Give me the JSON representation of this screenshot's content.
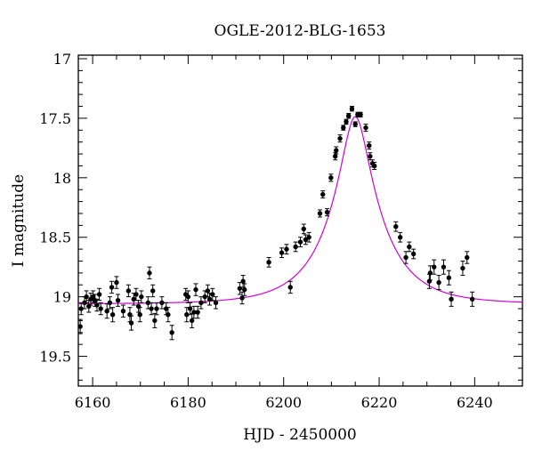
{
  "chart_data": {
    "type": "scatter",
    "title": "OGLE-2012-BLG-1653",
    "xlabel": "HJD - 2450000",
    "ylabel": "I magnitude",
    "xlim": [
      6157,
      6250
    ],
    "ylim": [
      19.75,
      16.97
    ],
    "y_inverted": true,
    "xticks": [
      6160,
      6180,
      6200,
      6220,
      6240
    ],
    "yticks": [
      17,
      17.5,
      18,
      18.5,
      19,
      19.5
    ],
    "xtick_labels": [
      "6160",
      "6180",
      "6200",
      "6220",
      "6240"
    ],
    "ytick_labels": [
      "17",
      "17.5",
      "18",
      "18.5",
      "19",
      "19.5"
    ],
    "grid": false,
    "colors": {
      "points": "#000000",
      "model": "#d400d4"
    },
    "model": {
      "t0": 6215.0,
      "u0": 0.24,
      "tE": 11.0,
      "baseline_mag": 19.06
    },
    "series": [
      {
        "points": [
          [
            6157.4,
            19.25,
            0.06
          ],
          [
            6157.6,
            19.1,
            0.05
          ],
          [
            6158.3,
            19.05,
            0.05
          ],
          [
            6158.7,
            19.0,
            0.05
          ],
          [
            6159.2,
            19.08,
            0.05
          ],
          [
            6159.6,
            19.02,
            0.05
          ],
          [
            6160.1,
            19.0,
            0.05
          ],
          [
            6160.5,
            19.03,
            0.05
          ],
          [
            6160.9,
            19.07,
            0.05
          ],
          [
            6161.4,
            18.98,
            0.05
          ],
          [
            6161.7,
            19.1,
            0.05
          ],
          [
            6163.0,
            19.12,
            0.06
          ],
          [
            6163.6,
            19.05,
            0.05
          ],
          [
            6164.0,
            18.92,
            0.05
          ],
          [
            6164.2,
            19.15,
            0.06
          ],
          [
            6165.0,
            18.88,
            0.05
          ],
          [
            6165.3,
            19.03,
            0.05
          ],
          [
            6166.4,
            19.12,
            0.05
          ],
          [
            6167.5,
            18.95,
            0.05
          ],
          [
            6167.8,
            19.15,
            0.06
          ],
          [
            6168.1,
            19.22,
            0.06
          ],
          [
            6168.6,
            19.02,
            0.05
          ],
          [
            6169.1,
            18.98,
            0.05
          ],
          [
            6169.6,
            19.08,
            0.05
          ],
          [
            6169.9,
            19.15,
            0.06
          ],
          [
            6170.2,
            19.0,
            0.05
          ],
          [
            6171.6,
            19.05,
            0.05
          ],
          [
            6171.9,
            18.8,
            0.05
          ],
          [
            6172.3,
            19.1,
            0.05
          ],
          [
            6172.6,
            18.95,
            0.05
          ],
          [
            6173.0,
            19.2,
            0.06
          ],
          [
            6173.4,
            19.1,
            0.05
          ],
          [
            6174.5,
            19.05,
            0.05
          ],
          [
            6175.4,
            19.1,
            0.05
          ],
          [
            6175.8,
            19.15,
            0.06
          ],
          [
            6176.6,
            19.3,
            0.06
          ],
          [
            6179.5,
            18.98,
            0.05
          ],
          [
            6179.7,
            19.15,
            0.06
          ],
          [
            6180.0,
            19.0,
            0.05
          ],
          [
            6180.4,
            19.1,
            0.05
          ],
          [
            6180.8,
            19.2,
            0.06
          ],
          [
            6181.2,
            19.13,
            0.05
          ],
          [
            6181.6,
            18.94,
            0.05
          ],
          [
            6182.0,
            19.13,
            0.05
          ],
          [
            6182.7,
            19.05,
            0.05
          ],
          [
            6183.5,
            19.0,
            0.05
          ],
          [
            6184.1,
            18.95,
            0.05
          ],
          [
            6184.5,
            19.02,
            0.05
          ],
          [
            6185.1,
            18.98,
            0.05
          ],
          [
            6185.8,
            19.05,
            0.05
          ],
          [
            6190.8,
            18.93,
            0.05
          ],
          [
            6191.3,
            19.01,
            0.05
          ],
          [
            6191.5,
            18.87,
            0.05
          ],
          [
            6191.8,
            18.94,
            0.05
          ],
          [
            6196.9,
            18.71,
            0.04
          ],
          [
            6199.6,
            18.63,
            0.04
          ],
          [
            6200.6,
            18.6,
            0.04
          ],
          [
            6201.4,
            18.92,
            0.05
          ],
          [
            6202.5,
            18.58,
            0.04
          ],
          [
            6203.5,
            18.54,
            0.04
          ],
          [
            6204.2,
            18.43,
            0.04
          ],
          [
            6204.6,
            18.52,
            0.04
          ],
          [
            6205.3,
            18.5,
            0.04
          ],
          [
            6207.6,
            18.3,
            0.03
          ],
          [
            6208.2,
            18.14,
            0.03
          ],
          [
            6209.1,
            18.29,
            0.03
          ],
          [
            6209.9,
            18.0,
            0.03
          ],
          [
            6210.8,
            17.82,
            0.03
          ],
          [
            6211.0,
            17.77,
            0.03
          ],
          [
            6211.8,
            17.67,
            0.03
          ],
          [
            6212.5,
            17.58,
            0.02
          ],
          [
            6213.1,
            17.53,
            0.02
          ],
          [
            6213.6,
            17.48,
            0.02
          ],
          [
            6214.3,
            17.42,
            0.02
          ],
          [
            6215.0,
            17.55,
            0.02
          ],
          [
            6215.5,
            17.47,
            0.02
          ],
          [
            6216.1,
            17.47,
            0.02
          ],
          [
            6217.2,
            17.58,
            0.03
          ],
          [
            6217.9,
            17.73,
            0.03
          ],
          [
            6218.1,
            17.82,
            0.03
          ],
          [
            6218.6,
            17.88,
            0.03
          ],
          [
            6219.0,
            17.9,
            0.03
          ],
          [
            6223.5,
            18.41,
            0.04
          ],
          [
            6224.4,
            18.5,
            0.04
          ],
          [
            6225.6,
            18.67,
            0.05
          ],
          [
            6226.3,
            18.58,
            0.04
          ],
          [
            6227.2,
            18.64,
            0.04
          ],
          [
            6230.5,
            18.87,
            0.06
          ],
          [
            6230.7,
            18.8,
            0.06
          ],
          [
            6231.5,
            18.75,
            0.06
          ],
          [
            6232.5,
            18.88,
            0.06
          ],
          [
            6233.5,
            18.75,
            0.06
          ],
          [
            6234.6,
            18.84,
            0.06
          ],
          [
            6235.1,
            19.02,
            0.06
          ],
          [
            6237.5,
            18.76,
            0.06
          ],
          [
            6238.4,
            18.67,
            0.05
          ],
          [
            6239.5,
            19.02,
            0.06
          ]
        ]
      }
    ]
  }
}
